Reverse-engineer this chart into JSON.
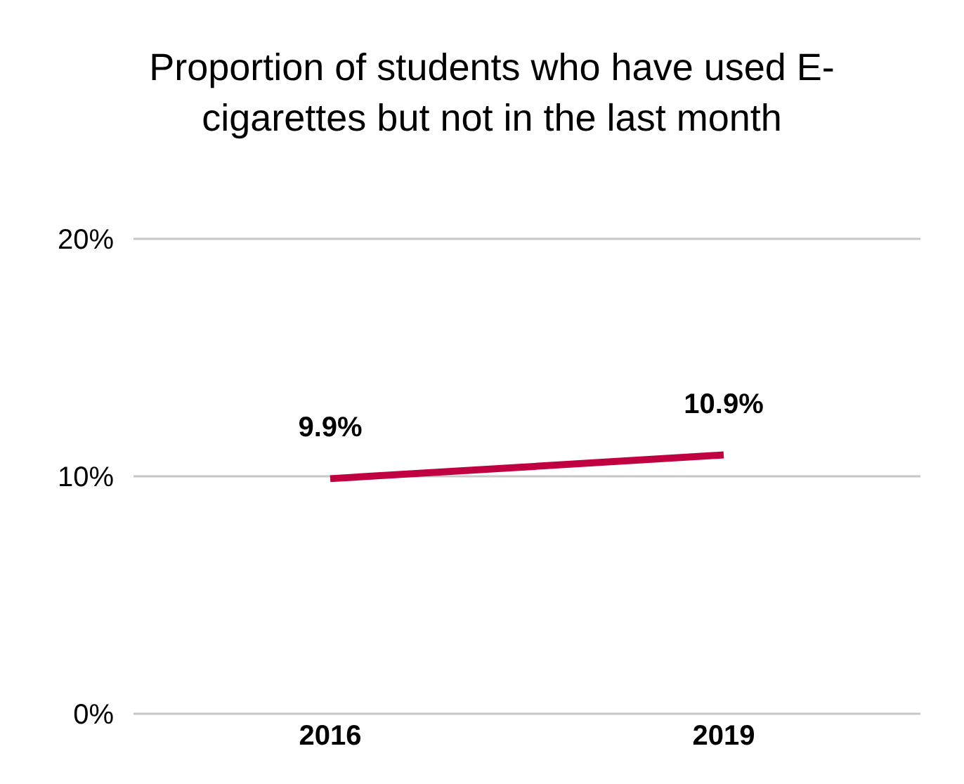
{
  "chart_data": {
    "type": "line",
    "title": "Proportion of students who have used E-cigarettes but not in the last month",
    "categories": [
      "2016",
      "2019"
    ],
    "series": [
      {
        "color": "#c00040",
        "values": [
          9.9,
          10.9
        ],
        "value_labels": [
          "9.9%",
          "10.9%"
        ]
      }
    ],
    "ylim": [
      0,
      20
    ],
    "yticks": [
      {
        "value": 0,
        "label": "0%"
      },
      {
        "value": 10,
        "label": "10%"
      },
      {
        "value": 20,
        "label": "20%"
      }
    ],
    "grid": "y",
    "legend": false,
    "marker": "none",
    "line_style": "solid"
  }
}
